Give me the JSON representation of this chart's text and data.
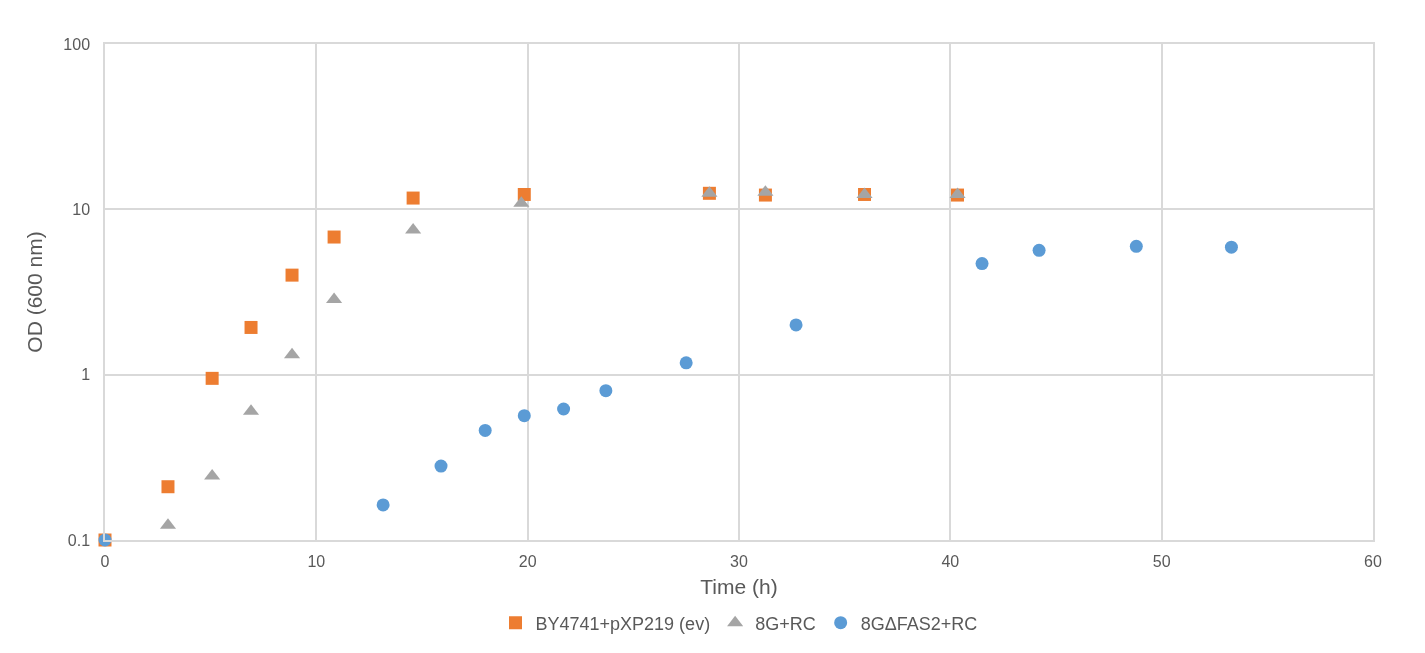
{
  "chart_data": {
    "type": "scatter",
    "xlabel": "Time (h)",
    "ylabel": "OD (600 nm)",
    "log": "y",
    "xlim": [
      0,
      60
    ],
    "xticks": [
      0,
      10,
      20,
      30,
      40,
      50,
      60
    ],
    "ylim": [
      0.1,
      100
    ],
    "yticks": [
      0.1,
      1,
      10,
      100
    ],
    "grid": true,
    "legend": "bottom",
    "series": [
      {
        "name": "BY4741+pXP219 (ev)",
        "color": "#ed7d31",
        "marker": "square",
        "x": [
          0,
          2.98,
          5.07,
          6.91,
          8.85,
          10.84,
          14.58,
          19.84,
          28.6,
          31.25,
          35.94,
          40.34
        ],
        "values": [
          0.1,
          0.21,
          0.95,
          1.93,
          4.0,
          6.8,
          11.7,
          12.3,
          12.5,
          12.2,
          12.3,
          12.2
        ]
      },
      {
        "name": "8G+RC",
        "color": "#a5a5a5",
        "marker": "triangle",
        "x": [
          2.98,
          5.07,
          6.91,
          8.85,
          10.84,
          14.58,
          19.7,
          28.6,
          31.25,
          35.94,
          40.34
        ],
        "values": [
          0.123,
          0.244,
          0.6,
          1.32,
          2.85,
          7.5,
          10.9,
          12.5,
          12.7,
          12.3,
          12.3
        ]
      },
      {
        "name": "8GΔFAS2+RC",
        "color": "#5b9bd5",
        "marker": "circle",
        "x": [
          0,
          13.16,
          15.9,
          17.99,
          19.84,
          21.7,
          23.7,
          27.5,
          32.7,
          41.5,
          44.2,
          48.8,
          53.3
        ],
        "values": [
          0.1,
          0.163,
          0.28,
          0.46,
          0.565,
          0.62,
          0.8,
          1.18,
          2.0,
          4.7,
          5.65,
          5.97,
          5.9
        ]
      }
    ]
  }
}
